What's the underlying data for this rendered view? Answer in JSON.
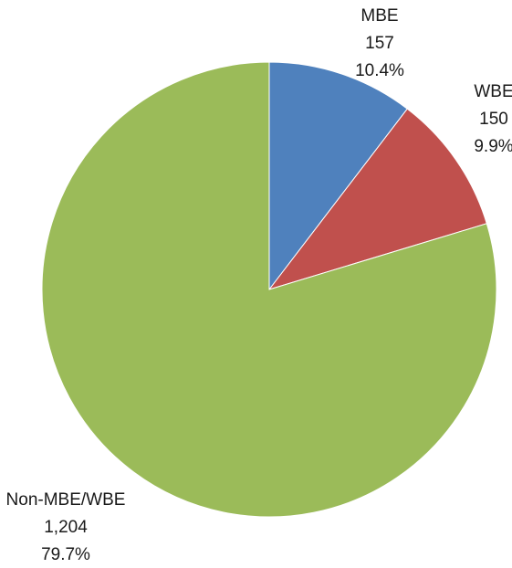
{
  "chart_data": {
    "type": "pie",
    "categories": [
      "MBE",
      "WBE",
      "Non-MBE/WBE"
    ],
    "values": [
      157,
      150,
      1204
    ],
    "value_labels": [
      "157",
      "150",
      "1,204"
    ],
    "percentages": [
      {
        "value": 10.4,
        "label": "10.4%"
      },
      {
        "value": 9.9,
        "label": "9.9%"
      },
      {
        "value": 79.7,
        "label": "79.7%"
      }
    ],
    "colors": [
      "#4f81bd",
      "#c0504d",
      "#9bbb59"
    ]
  }
}
